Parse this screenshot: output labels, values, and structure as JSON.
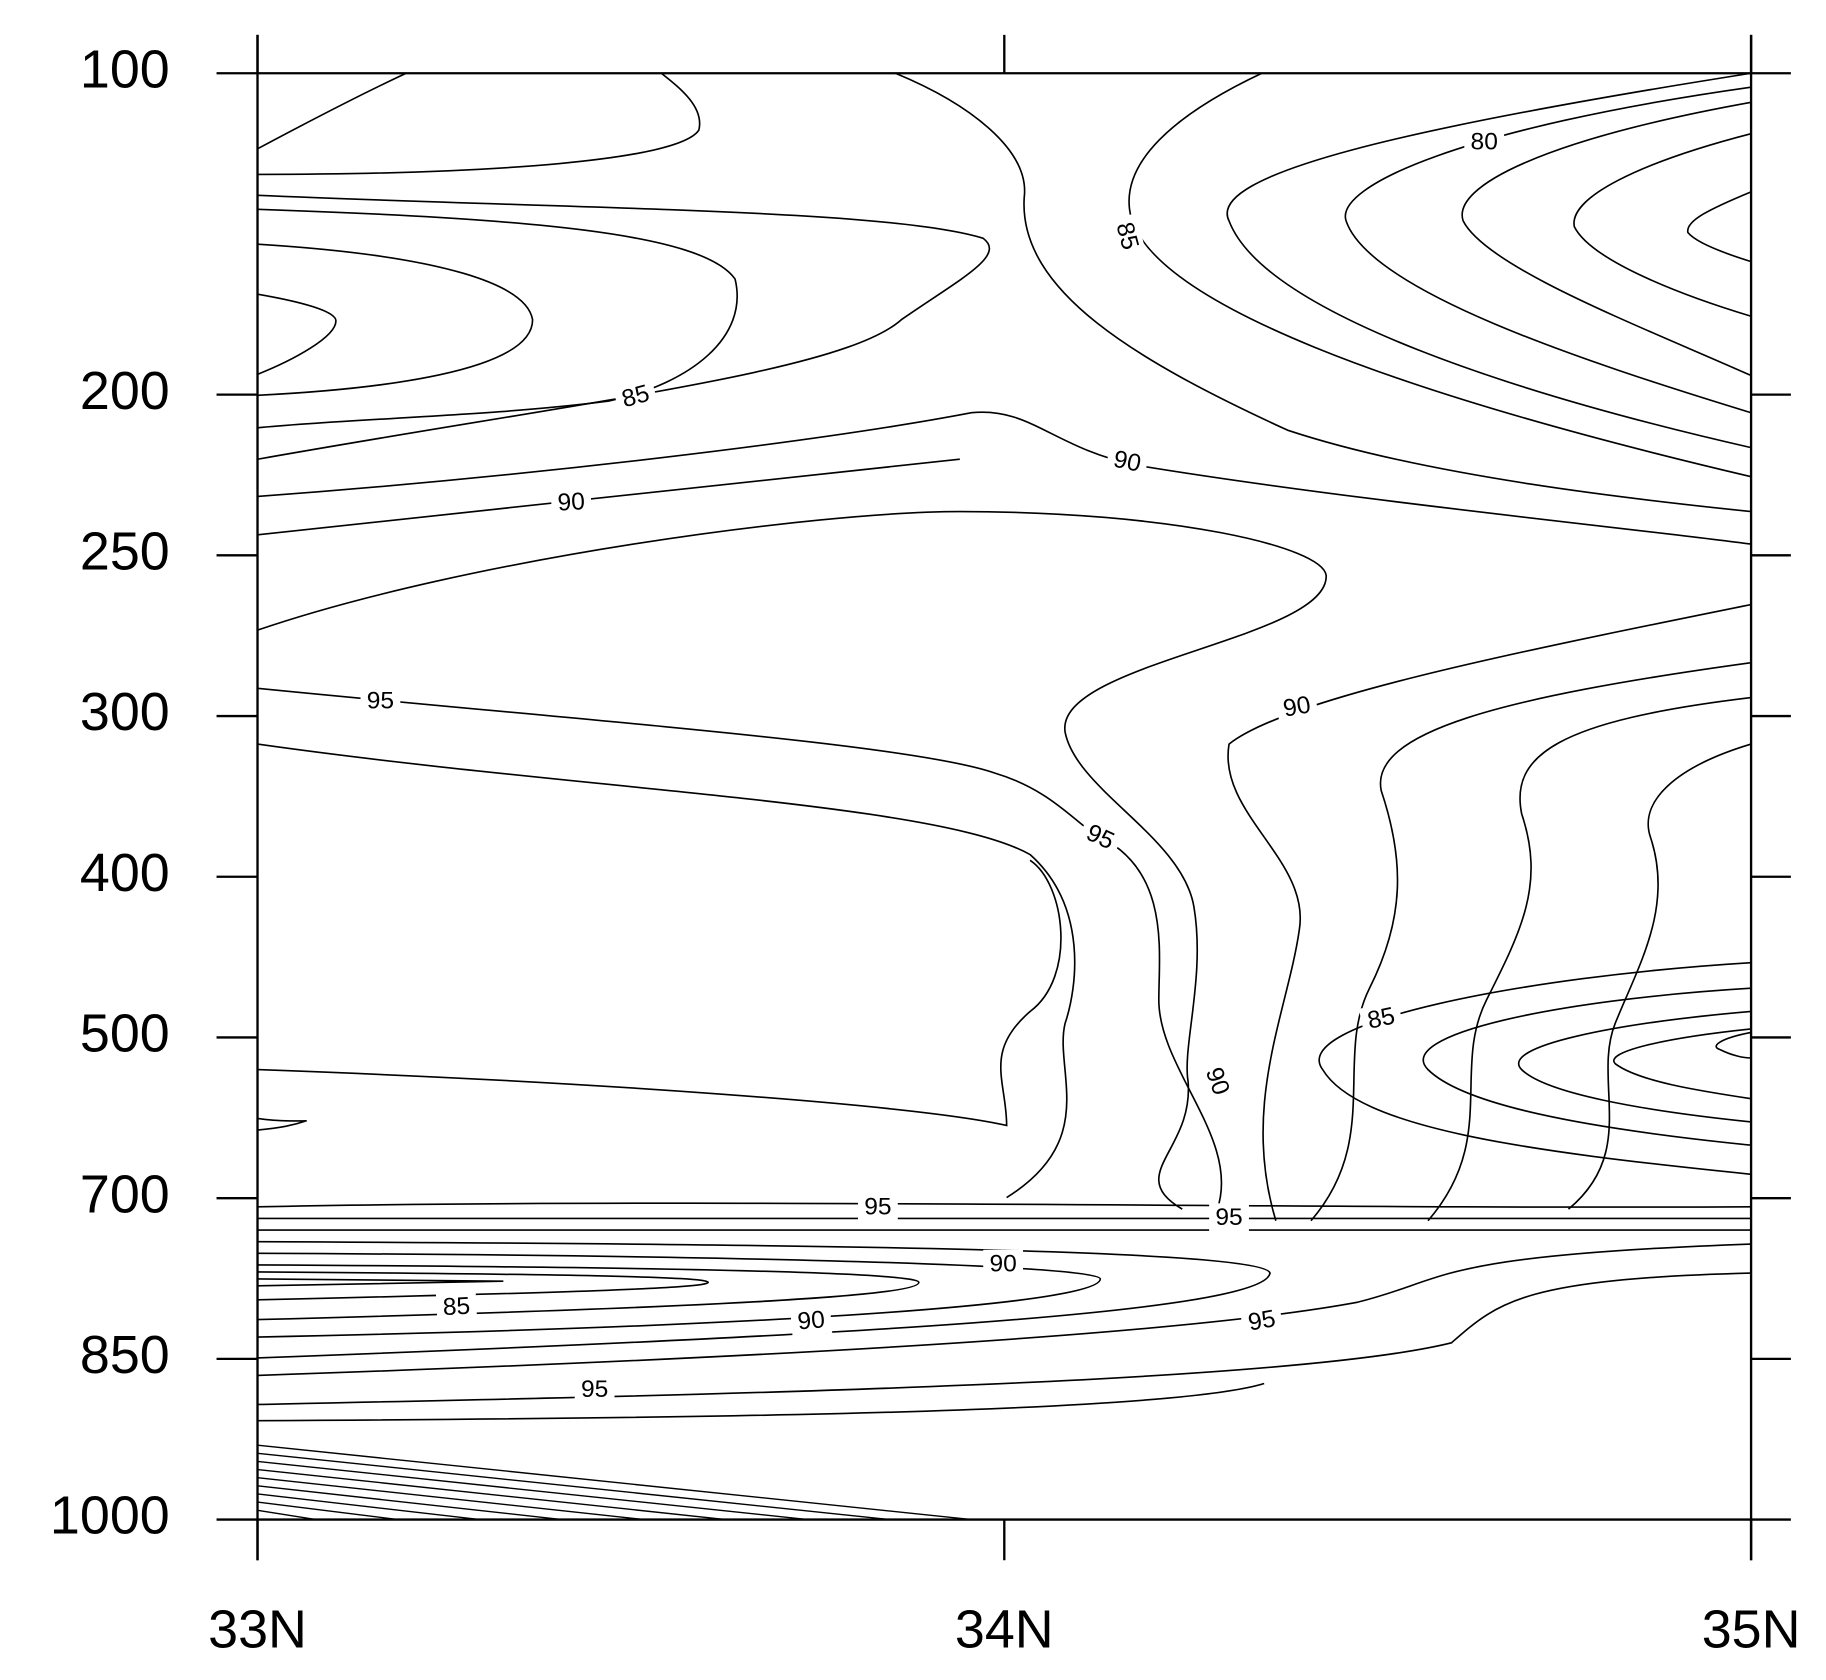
{
  "chart_data": {
    "type": "contour",
    "categories": [
      "33N",
      "34N",
      "35N"
    ],
    "y_levels": [
      100,
      null,
      200,
      250,
      300,
      400,
      500,
      700,
      850,
      1000
    ],
    "contour_labels": [
      80,
      85,
      85,
      90,
      90,
      95,
      90,
      95,
      85,
      90,
      95,
      95,
      90,
      85,
      90,
      95,
      95
    ],
    "color": "#000000"
  }
}
